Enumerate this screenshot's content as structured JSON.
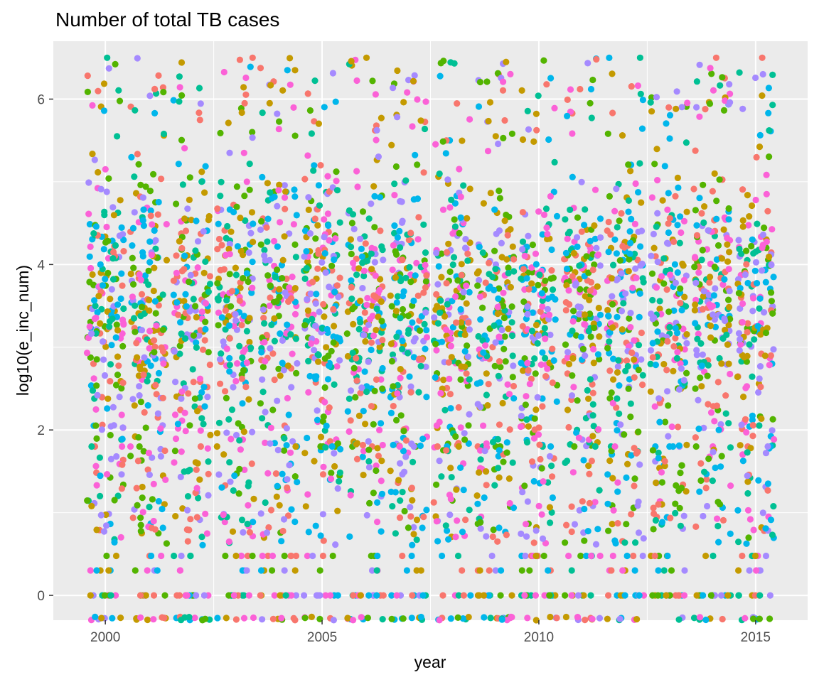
{
  "chart_data": {
    "type": "scatter",
    "title": "Number of total TB cases",
    "xlabel": "year",
    "ylabel": "log10(e_inc_num)",
    "xlim": [
      1998.8,
      2016.2
    ],
    "ylim": [
      -0.3,
      6.7
    ],
    "x_ticks": [
      "2000",
      "2005",
      "2010",
      "2015"
    ],
    "y_ticks": [
      "0",
      "2",
      "4",
      "6"
    ],
    "grid": true,
    "legend": "none",
    "jitter": true,
    "years": [
      2000,
      2001,
      2002,
      2003,
      2004,
      2005,
      2006,
      2007,
      2008,
      2009,
      2010,
      2011,
      2012,
      2013,
      2014,
      2015
    ],
    "points_per_year": 230,
    "palette": [
      "#F8766D",
      "#C49A00",
      "#53B400",
      "#00C094",
      "#00B6EB",
      "#A58AFF",
      "#FB61D7"
    ],
    "panel_background": "#EBEBEB",
    "grid_color": "#FFFFFF"
  }
}
